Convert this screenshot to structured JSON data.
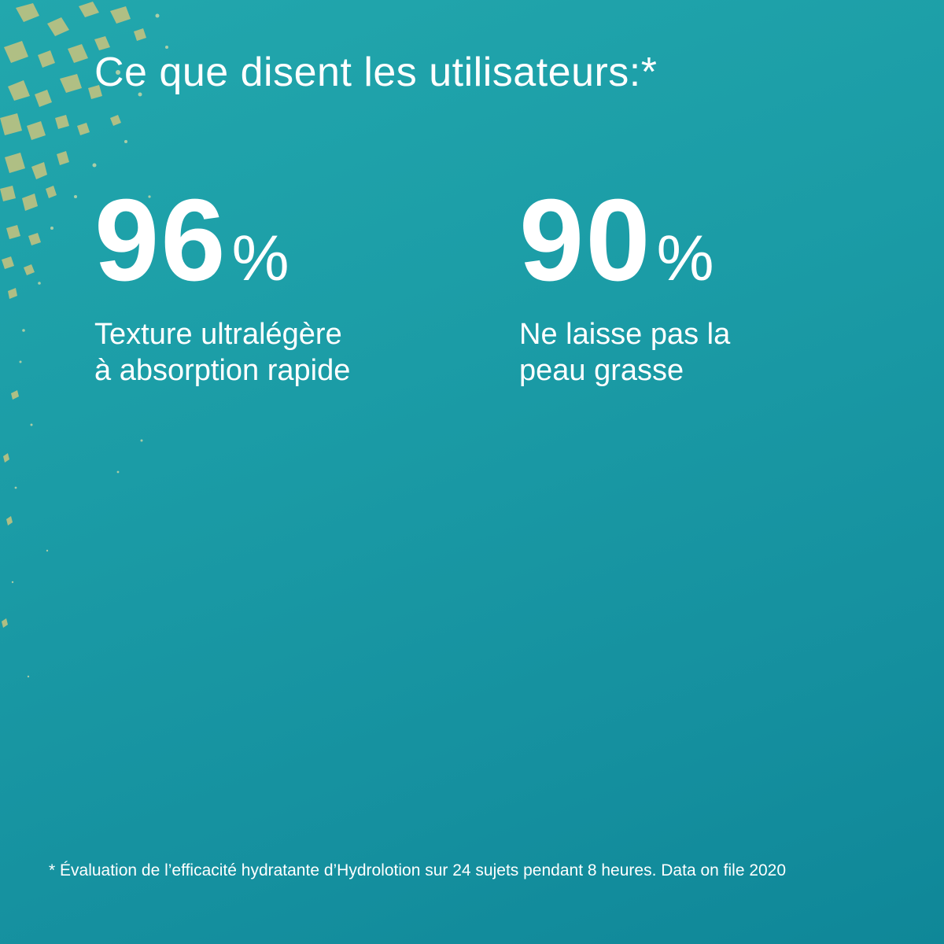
{
  "headline": "Ce que disent les utilisateurs:*",
  "stats": [
    {
      "number": "96",
      "unit": "%",
      "description_lines": [
        "Texture ultralégère",
        "à absorption rapide"
      ]
    },
    {
      "number": "90",
      "unit": "%",
      "description_lines": [
        "Ne laisse pas la",
        "peau grasse"
      ]
    }
  ],
  "footnote": "* Évaluation de l’efficacité hydratante d’Hydrolotion sur 24 sujets pendant 8 heures. Data on file 2020",
  "colors": {
    "background": "#1b9ca6",
    "text": "#ffffff",
    "flakes": "#c8c27a"
  }
}
